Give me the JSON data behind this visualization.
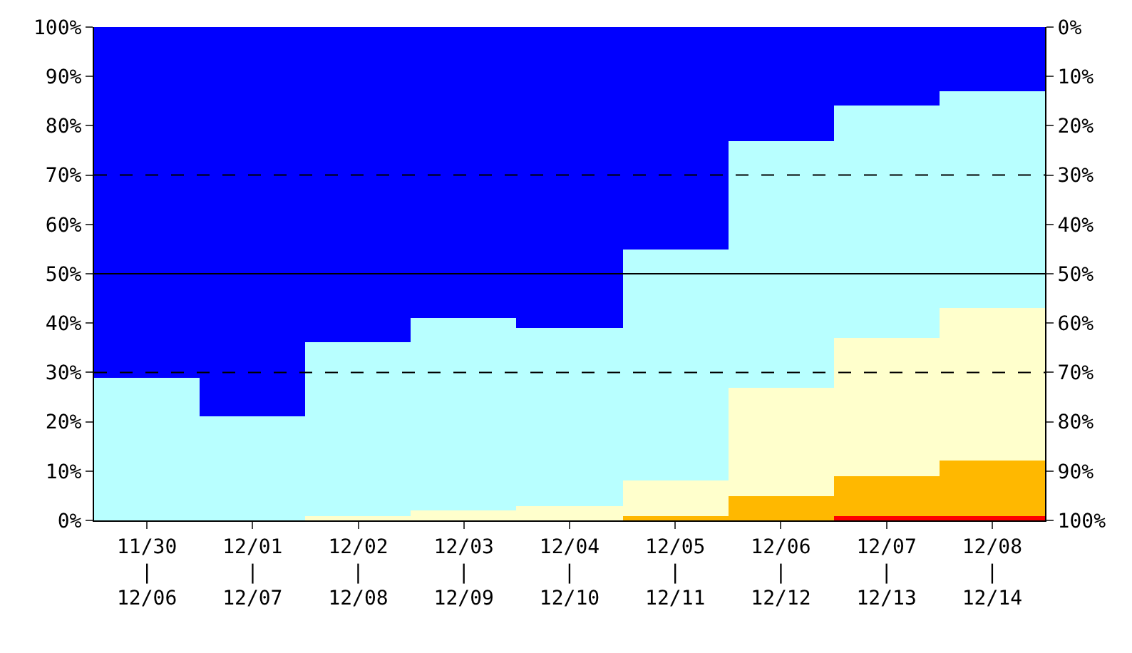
{
  "chart_data": {
    "type": "bar",
    "stacked": true,
    "categories": [
      "11/30\n|\n12/06",
      "12/01\n|\n12/07",
      "12/02\n|\n12/08",
      "12/03\n|\n12/09",
      "12/04\n|\n12/10",
      "12/05\n|\n12/11",
      "12/06\n|\n12/12",
      "12/07\n|\n12/13",
      "12/08\n|\n12/14"
    ],
    "series": [
      {
        "color": "#ff0000",
        "values": [
          0,
          0,
          0,
          0,
          0,
          0,
          0,
          1,
          1
        ]
      },
      {
        "color": "#ffb800",
        "values": [
          0,
          0,
          0,
          0,
          0,
          1,
          5,
          8,
          11
        ]
      },
      {
        "color": "#ffffcc",
        "values": [
          0,
          0,
          1,
          2,
          3,
          7,
          22,
          28,
          31
        ]
      },
      {
        "color": "#b8ffff",
        "values": [
          29,
          21,
          35,
          39,
          36,
          47,
          50,
          47,
          44
        ]
      },
      {
        "color": "#0000ff",
        "values": [
          71,
          79,
          64,
          59,
          61,
          45,
          23,
          16,
          13
        ]
      }
    ],
    "ylim": [
      0,
      100
    ],
    "yticks": [
      {
        "value": 0,
        "label": "0%"
      },
      {
        "value": 10,
        "label": "10%"
      },
      {
        "value": 20,
        "label": "20%"
      },
      {
        "value": 30,
        "label": "30%"
      },
      {
        "value": 40,
        "label": "40%"
      },
      {
        "value": 50,
        "label": "50%"
      },
      {
        "value": 60,
        "label": "60%"
      },
      {
        "value": 70,
        "label": "70%"
      },
      {
        "value": 80,
        "label": "80%"
      },
      {
        "value": 90,
        "label": "90%"
      },
      {
        "value": 100,
        "label": "100%"
      }
    ],
    "y2lim": [
      100,
      0
    ],
    "y2ticks": [
      {
        "value": 0,
        "label": "0%"
      },
      {
        "value": 10,
        "label": "10%"
      },
      {
        "value": 20,
        "label": "20%"
      },
      {
        "value": 30,
        "label": "30%"
      },
      {
        "value": 40,
        "label": "40%"
      },
      {
        "value": 50,
        "label": "50%"
      },
      {
        "value": 60,
        "label": "60%"
      },
      {
        "value": 70,
        "label": "70%"
      },
      {
        "value": 80,
        "label": "80%"
      },
      {
        "value": 90,
        "label": "90%"
      },
      {
        "value": 100,
        "label": "100%"
      }
    ],
    "ref_lines": [
      {
        "axis": "y",
        "value": 30,
        "line_style": "dashed",
        "color": "#000000"
      },
      {
        "axis": "y",
        "value": 50,
        "line_style": "solid",
        "color": "#000000"
      },
      {
        "axis": "y",
        "value": 70,
        "line_style": "dashed",
        "color": "#000000"
      }
    ]
  }
}
